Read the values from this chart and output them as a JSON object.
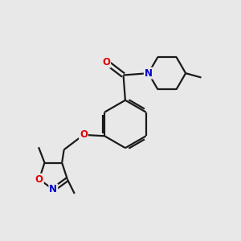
{
  "background_color": "#e8e8e8",
  "bond_color": "#1a1a1a",
  "bond_width": 1.6,
  "atom_colors": {
    "O": "#dd0000",
    "N": "#0000cc",
    "C": "#1a1a1a"
  },
  "font_size_atom": 8.5,
  "fig_width": 3.0,
  "fig_height": 3.0,
  "dpi": 100
}
